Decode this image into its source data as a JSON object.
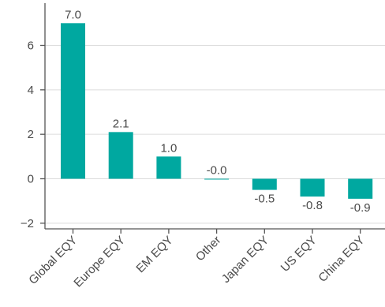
{
  "chart_data": {
    "type": "bar",
    "title": "",
    "xlabel": "",
    "ylabel": "",
    "categories": [
      "Global EQY",
      "Europe EQY",
      "EM EQY",
      "Other",
      "Japan EQY",
      "US EQY",
      "China EQY"
    ],
    "values": [
      7.0,
      2.1,
      1.0,
      -0.0,
      -0.5,
      -0.8,
      -0.9
    ],
    "value_labels": [
      "7.0",
      "2.1",
      "1.0",
      "-0.0",
      "-0.5",
      "-0.8",
      "-0.9"
    ],
    "ylim": [
      -2.1,
      7.2
    ],
    "yticks": [
      -2,
      0,
      2,
      4,
      6
    ],
    "ytick_labels": [
      "−2",
      "0",
      "2",
      "4",
      "6"
    ],
    "grid": "horizontal",
    "legend": "none",
    "colors": {
      "bar": "#00a8a0",
      "grid": "#dcdcdc",
      "axis": "#555555",
      "text": "#4a4a4a"
    }
  }
}
